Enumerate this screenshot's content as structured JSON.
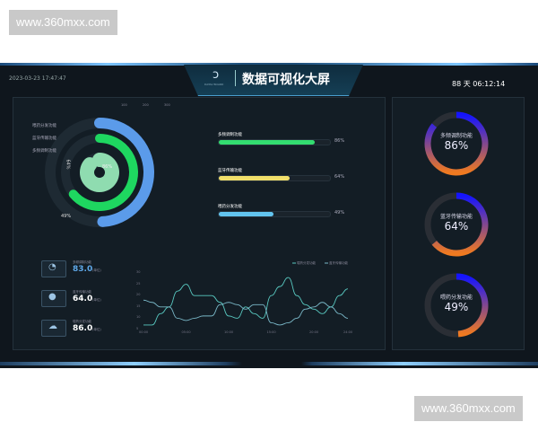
{
  "watermark": "www.360mxx.com",
  "header": {
    "datetime": "2023-03-23 17:47:47",
    "title": "数据可视化大屏",
    "logo_text": "DATAV BOARD",
    "uptime": "88 天 06:12:14"
  },
  "radial": {
    "legend": [
      "100",
      "200",
      "300"
    ],
    "items": [
      {
        "label": "喂药分发功能",
        "value": 49,
        "color": "#5b9bea"
      },
      {
        "label": "蓝牙传输功能",
        "value": 64,
        "color": "#1ed760"
      },
      {
        "label": "多频调制功能",
        "value": 86,
        "color": "#8fdcb0"
      }
    ],
    "value_labels": [
      "49%",
      "64%",
      "86%"
    ]
  },
  "bars": [
    {
      "label": "多频调制功能",
      "value": 86,
      "text": "86%",
      "color": "#33dd70"
    },
    {
      "label": "蓝牙传输功能",
      "value": 64,
      "text": "64%",
      "color": "#f1df6a"
    },
    {
      "label": "喂药分发功能",
      "value": 49,
      "text": "49%",
      "color": "#62c4ef"
    }
  ],
  "cards": [
    {
      "label": "多频调制功能",
      "value": "83.0",
      "unit": "(单位)",
      "icon": "gauge-icon",
      "color": "#5fa8e8"
    },
    {
      "label": "蓝牙传输功能",
      "value": "64.0",
      "unit": "(单位)",
      "icon": "bulb-icon",
      "color": "#ffffff"
    },
    {
      "label": "喂药分发功能",
      "value": "86.0",
      "unit": "(单位)",
      "icon": "cloud-icon",
      "color": "#ffffff"
    }
  ],
  "chart_data": {
    "type": "line",
    "x": [
      "00:00",
      "01:00",
      "02:00",
      "03:00",
      "04:00",
      "05:00",
      "06:00",
      "07:00",
      "08:00",
      "09:00",
      "10:00",
      "11:00",
      "12:00",
      "13:00",
      "14:00",
      "15:00",
      "16:00",
      "17:00",
      "18:00",
      "19:00",
      "20:00",
      "21:00",
      "22:00",
      "23:00",
      "24:00"
    ],
    "x_ticks": [
      "00:00",
      "05:00",
      "10:00",
      "15:00",
      "20:00",
      "24:00"
    ],
    "y_ticks": [
      5,
      10,
      15,
      20,
      25,
      30
    ],
    "ylim": [
      5,
      30
    ],
    "grid": false,
    "legend_position": "top-right",
    "series": [
      {
        "name": "喂药分发功能",
        "color": "#58c8c0",
        "values": [
          7,
          7,
          12,
          15,
          22,
          25,
          20,
          20,
          20,
          17,
          11,
          10,
          15,
          12,
          10,
          20,
          24,
          28,
          20,
          16,
          14,
          12,
          15,
          20,
          23
        ]
      },
      {
        "name": "蓝牙传输功能",
        "color": "#7ab8c8",
        "values": [
          18,
          17,
          15,
          15,
          10,
          9,
          10,
          11,
          11,
          16,
          17,
          16,
          14,
          16,
          16,
          8,
          7,
          8,
          10,
          14,
          15,
          17,
          15,
          12,
          10
        ]
      }
    ]
  },
  "gauges": [
    {
      "label": "多频调制功能",
      "value": 86,
      "text": "86%"
    },
    {
      "label": "蓝牙传输功能",
      "value": 64,
      "text": "64%"
    },
    {
      "label": "喂药分发功能",
      "value": 49,
      "text": "49%"
    }
  ]
}
